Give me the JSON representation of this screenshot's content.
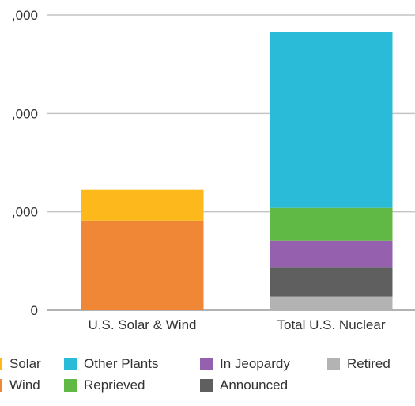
{
  "chart_data": {
    "type": "bar",
    "stacked": true,
    "categories": [
      "U.S. Solar & Wind",
      "Total U.S. Nuclear"
    ],
    "y_tick_labels": [
      {
        "value": 0,
        "label": "0"
      },
      {
        "value": 20000,
        "label": ",000"
      },
      {
        "value": 40000,
        "label": ",000"
      },
      {
        "value": 60000,
        "label": ",000"
      }
    ],
    "ylim": [
      0,
      60000
    ],
    "grid": true,
    "series": [
      {
        "name": "Retired",
        "color": "#b3b3b3",
        "values": [
          0,
          2800
        ]
      },
      {
        "name": "Announced",
        "color": "#5f5f60",
        "values": [
          0,
          6000
        ]
      },
      {
        "name": "In Jeopardy",
        "color": "#9560ad",
        "values": [
          0,
          5400
        ]
      },
      {
        "name": "Reprieved",
        "color": "#61b945",
        "values": [
          0,
          6600
        ]
      },
      {
        "name": "Other Plants",
        "color": "#2abbd8",
        "values": [
          0,
          35800
        ]
      },
      {
        "name": "Wind",
        "color": "#ef8737",
        "values": [
          18200,
          0
        ]
      },
      {
        "name": "Solar",
        "color": "#fdb91c",
        "values": [
          6300,
          0
        ]
      }
    ],
    "legend": [
      {
        "name": "Solar",
        "color": "#fdb91c"
      },
      {
        "name": "Wind",
        "color": "#ef8737"
      },
      {
        "name": "Other Plants",
        "color": "#2abbd8"
      },
      {
        "name": "Reprieved",
        "color": "#61b945"
      },
      {
        "name": "In Jeopardy",
        "color": "#9560ad"
      },
      {
        "name": "Announced",
        "color": "#5f5f60"
      },
      {
        "name": "Retired",
        "color": "#b3b3b3"
      }
    ],
    "legend_placement": "bottom"
  }
}
